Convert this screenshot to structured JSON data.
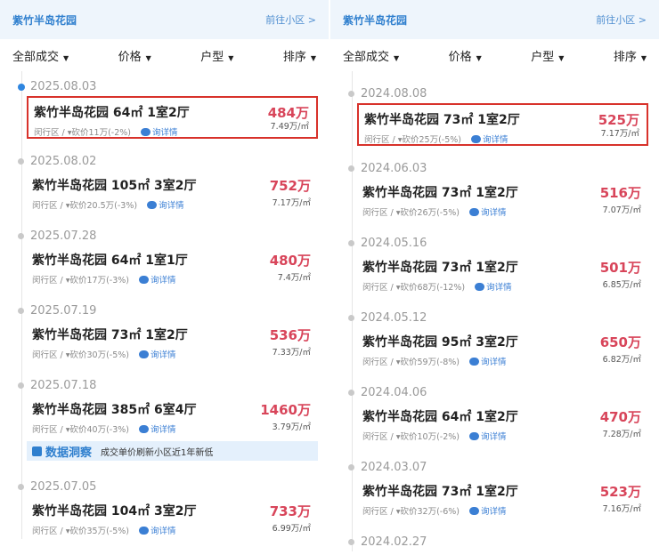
{
  "left": {
    "title": "紫竹半岛花园",
    "go": "前往小区 >",
    "filters": [
      "全部成交",
      "价格",
      "户型",
      "排序"
    ],
    "items": [
      {
        "date": "2025.08.03",
        "title": "紫竹半岛花园 64㎡ 1室2厅",
        "price": "484万",
        "district": "闵行区 /",
        "cut": "▾砍价11万(-2%)",
        "ask": "询详情",
        "unit": "7.49万/㎡",
        "highlight": true,
        "active": true
      },
      {
        "date": "2025.08.02",
        "title": "紫竹半岛花园 105㎡ 3室2厅",
        "price": "752万",
        "district": "闵行区 /",
        "cut": "▾砍价20.5万(-3%)",
        "ask": "询详情",
        "unit": "7.17万/㎡"
      },
      {
        "date": "2025.07.28",
        "title": "紫竹半岛花园 64㎡ 1室1厅",
        "price": "480万",
        "district": "闵行区 /",
        "cut": "▾砍价17万(-3%)",
        "ask": "询详情",
        "unit": "7.4万/㎡"
      },
      {
        "date": "2025.07.19",
        "title": "紫竹半岛花园 73㎡ 1室2厅",
        "price": "536万",
        "district": "闵行区 /",
        "cut": "▾砍价30万(-5%)",
        "ask": "询详情",
        "unit": "7.33万/㎡"
      },
      {
        "date": "2025.07.18",
        "title": "紫竹半岛花园 385㎡ 6室4厅",
        "price": "1460万",
        "district": "闵行区 /",
        "cut": "▾砍价40万(-3%)",
        "ask": "询详情",
        "unit": "3.79万/㎡",
        "insight_label": "数据洞察",
        "insight": "成交单价刷新小区近1年新低"
      },
      {
        "date": "2025.07.05",
        "title": "紫竹半岛花园 104㎡ 3室2厅",
        "price": "733万",
        "district": "闵行区 /",
        "cut": "▾砍价35万(-5%)",
        "ask": "询详情",
        "unit": "6.99万/㎡"
      }
    ]
  },
  "right": {
    "title": "紫竹半岛花园",
    "go": "前往小区 >",
    "filters": [
      "全部成交",
      "价格",
      "户型",
      "排序"
    ],
    "items": [
      {
        "date": "2024.08.08",
        "title": "紫竹半岛花园 73㎡ 1室2厅",
        "price": "525万",
        "district": "闵行区 /",
        "cut": "▾砍价25万(-5%)",
        "ask": "询详情",
        "unit": "7.17万/㎡",
        "highlight": true
      },
      {
        "date": "2024.06.03",
        "title": "紫竹半岛花园 73㎡ 1室2厅",
        "price": "516万",
        "district": "闵行区 /",
        "cut": "▾砍价26万(-5%)",
        "ask": "询详情",
        "unit": "7.07万/㎡"
      },
      {
        "date": "2024.05.16",
        "title": "紫竹半岛花园 73㎡ 1室2厅",
        "price": "501万",
        "district": "闵行区 /",
        "cut": "▾砍价68万(-12%)",
        "ask": "询详情",
        "unit": "6.85万/㎡"
      },
      {
        "date": "2024.05.12",
        "title": "紫竹半岛花园 95㎡ 3室2厅",
        "price": "650万",
        "district": "闵行区 /",
        "cut": "▾砍价59万(-8%)",
        "ask": "询详情",
        "unit": "6.82万/㎡"
      },
      {
        "date": "2024.04.06",
        "title": "紫竹半岛花园 64㎡ 1室2厅",
        "price": "470万",
        "district": "闵行区 /",
        "cut": "▾砍价10万(-2%)",
        "ask": "询详情",
        "unit": "7.28万/㎡"
      },
      {
        "date": "2024.03.07",
        "title": "紫竹半岛花园 73㎡ 1室2厅",
        "price": "523万",
        "district": "闵行区 /",
        "cut": "▾砍价32万(-6%)",
        "ask": "询详情",
        "unit": "7.16万/㎡"
      },
      {
        "date": "2024.02.27"
      }
    ]
  }
}
